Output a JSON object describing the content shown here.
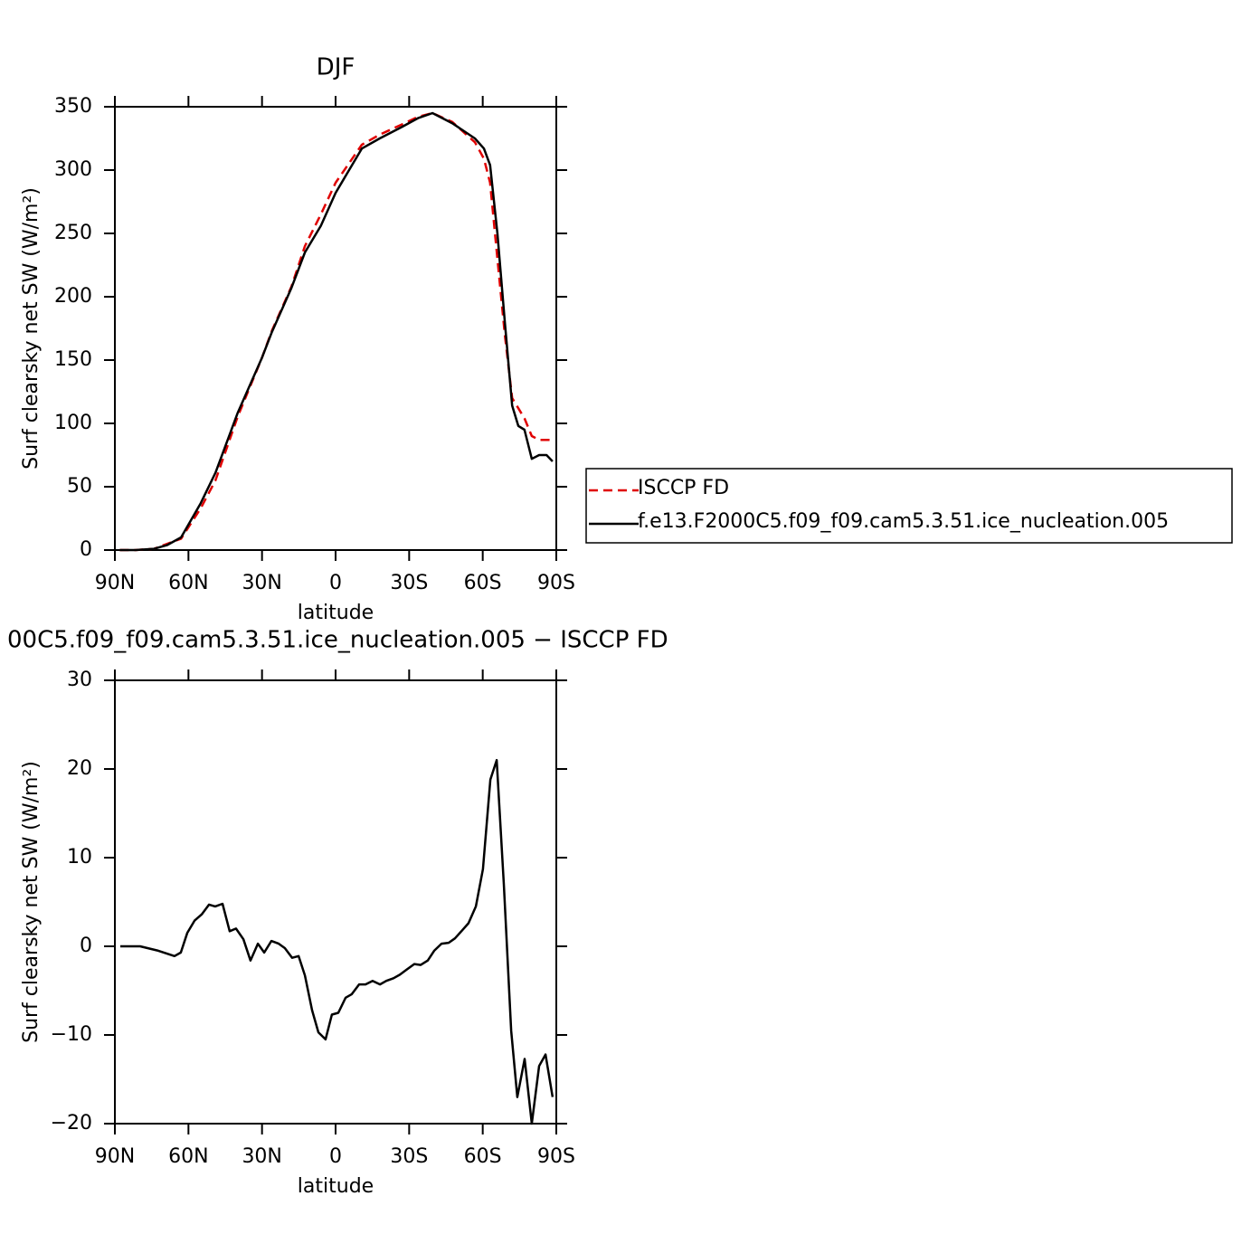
{
  "chart_data": [
    {
      "type": "line",
      "title": "DJF",
      "xlabel": "latitude",
      "ylabel": "Surf clearsky net SW (W/m²)",
      "xlim": [
        90,
        -90
      ],
      "xticks": [
        {
          "value": 90,
          "label": "90N"
        },
        {
          "value": 60,
          "label": "60N"
        },
        {
          "value": 30,
          "label": "30N"
        },
        0,
        {
          "value": -30,
          "label": "30S"
        },
        {
          "value": -60,
          "label": "60S"
        },
        {
          "value": -90,
          "label": "90S"
        }
      ],
      "ylim": [
        0,
        350
      ],
      "yticks": [
        0,
        50,
        100,
        150,
        200,
        250,
        300,
        350
      ],
      "legend": "right",
      "x": [
        88,
        81.5,
        74,
        68.6,
        63,
        55,
        49,
        40,
        30,
        26,
        18,
        12.5,
        6,
        0,
        -10.7,
        -18,
        -27,
        -33.6,
        -39.5,
        -47.6,
        -56.8,
        -60.5,
        -63,
        -66,
        -69,
        -72,
        -74.5,
        -77,
        -80,
        -83,
        -86,
        -88.5
      ],
      "series": [
        {
          "name": "ISCCP FD",
          "color": "#e00000",
          "line_style": "dashed",
          "values": [
            0,
            0,
            1,
            5,
            9,
            33,
            55,
            105,
            152,
            173,
            208,
            240,
            265,
            290,
            320,
            328,
            336,
            342,
            345,
            338,
            322,
            309,
            290,
            230,
            170,
            120,
            112,
            104,
            90,
            87,
            87,
            87
          ]
        },
        {
          "name": "f.e13.F2000C5.f09_f09.cam5.3.51.ice_nucleation.005",
          "color": "#000000",
          "line_style": "solid",
          "values": [
            0,
            0,
            1,
            4,
            10,
            37,
            61,
            108,
            152,
            172,
            207,
            235,
            256,
            282,
            317,
            325,
            334,
            341,
            345,
            337,
            325,
            317,
            304,
            250,
            180,
            114,
            98,
            95,
            72,
            75,
            75,
            70
          ]
        }
      ]
    },
    {
      "type": "line",
      "title": "00C5.f09_f09.cam5.3.51.ice_nucleation.005 − ISCCP FD",
      "xlabel": "latitude",
      "ylabel": "Surf clearsky net SW (W/m²)",
      "xlim": [
        90,
        -90
      ],
      "xticks": [
        {
          "value": 90,
          "label": "90N"
        },
        {
          "value": 60,
          "label": "60N"
        },
        {
          "value": 30,
          "label": "30N"
        },
        0,
        {
          "value": -30,
          "label": "30S"
        },
        {
          "value": -60,
          "label": "60S"
        },
        {
          "value": -90,
          "label": "90S"
        }
      ],
      "ylim": [
        -20,
        30
      ],
      "yticks": [
        {
          "value": -20,
          "label": "−20"
        },
        {
          "value": -10,
          "label": "−10"
        },
        0,
        10,
        20,
        30
      ],
      "x": [
        87.8,
        79.7,
        72.3,
        65.7,
        63.1,
        60.5,
        57.5,
        54.6,
        51.6,
        49.1,
        46.1,
        43.2,
        40.6,
        37.6,
        34.7,
        31.7,
        29.1,
        26.2,
        23.2,
        20.7,
        17.7,
        15.1,
        12.5,
        9.6,
        7.0,
        4.1,
        1.5,
        -1.1,
        -4.1,
        -6.6,
        -9.6,
        -12.2,
        -15.1,
        -18.1,
        -20.7,
        -23.6,
        -26.2,
        -29.1,
        -32.1,
        -34.7,
        -37.6,
        -40.2,
        -43.2,
        -46.1,
        -48.7,
        -51.3,
        -54.2,
        -57.2,
        -60.1,
        -63.1,
        -65.7,
        -68.6,
        -71.6,
        -74.1,
        -77.1,
        -80.0,
        -83.0,
        -85.6,
        -88.5
      ],
      "color": "#000000",
      "values": [
        0,
        0,
        -0.5,
        -1.1,
        -0.7,
        1.5,
        2.9,
        3.6,
        4.7,
        4.5,
        4.8,
        1.7,
        2.0,
        0.8,
        -1.6,
        0.3,
        -0.7,
        0.6,
        0.3,
        -0.2,
        -1.3,
        -1.1,
        -3.3,
        -7.2,
        -9.7,
        -10.5,
        -7.7,
        -7.5,
        -5.8,
        -5.4,
        -4.3,
        -4.3,
        -3.9,
        -4.3,
        -3.9,
        -3.6,
        -3.2,
        -2.6,
        -2.0,
        -2.1,
        -1.6,
        -0.5,
        0.3,
        0.4,
        0.9,
        1.7,
        2.6,
        4.5,
        8.7,
        18.8,
        21.0,
        7.0,
        -9.5,
        -17.0,
        -12.7,
        -20,
        -13.5,
        -12.2,
        -17.0
      ]
    }
  ]
}
